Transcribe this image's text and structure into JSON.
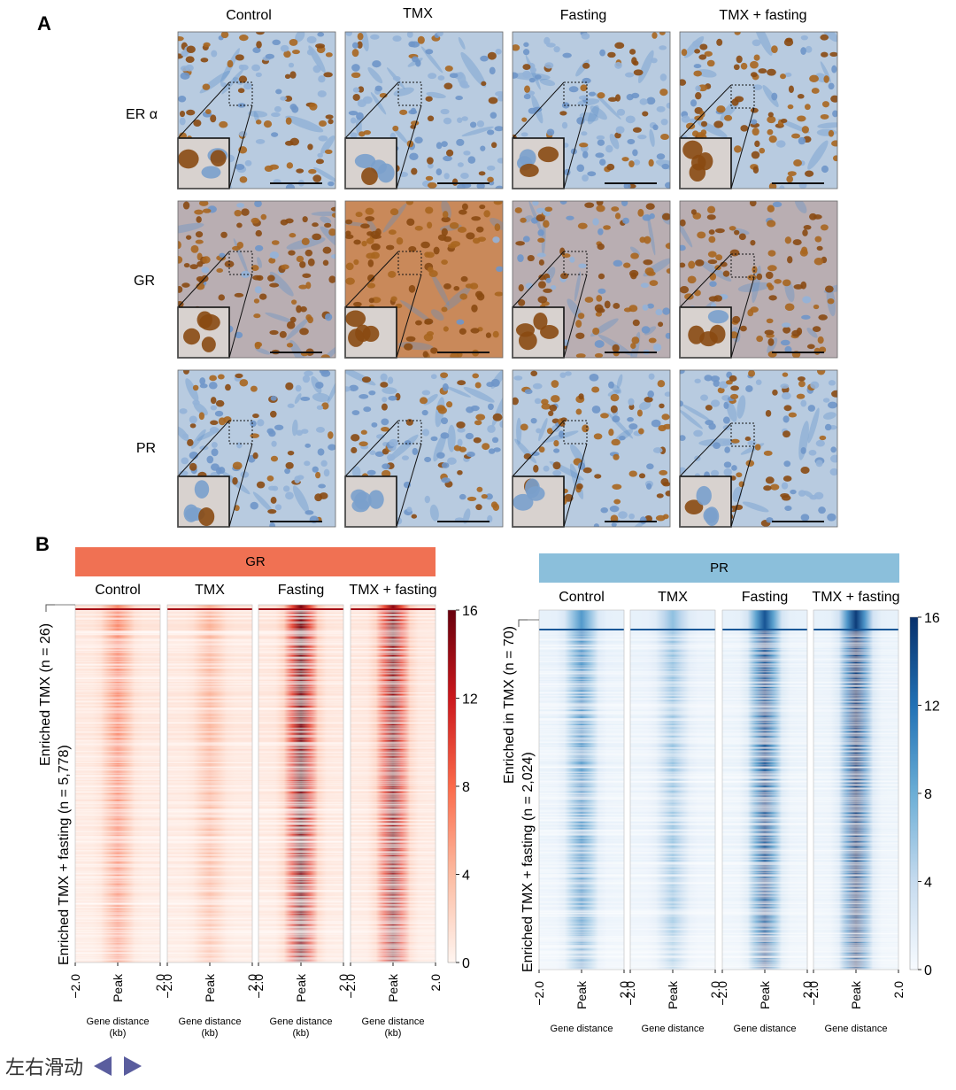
{
  "panel_a": {
    "label": "A",
    "columns": [
      "Control",
      "TMX",
      "Fasting",
      "TMX + fasting"
    ],
    "rows": [
      "ER α",
      "GR",
      "PR"
    ]
  },
  "panel_b": {
    "label": "B"
  },
  "nav": {
    "text": "左右滑动",
    "prev_icon": "triangle-left-icon",
    "next_icon": "triangle-right-icon",
    "color": "#5a5d9e"
  },
  "chart_data": [
    {
      "type": "heatmap",
      "title": "GR",
      "title_color": "#f07153",
      "columns": [
        "Control",
        "TMX",
        "Fasting",
        "TMX + fasting"
      ],
      "row_groups": [
        {
          "label": "Enriched TMX",
          "count_label": "n = 26",
          "n": 26
        },
        {
          "label": "Enriched TMX + fasting",
          "count_label": "n = 5,778",
          "n": 5778
        }
      ],
      "xticks": [
        "−2.0",
        "Peak",
        "2.0"
      ],
      "xlabel": "Gene distance (kb)",
      "colorbar": {
        "min": 0,
        "max": 16,
        "ticks": [
          0,
          4,
          8,
          12,
          16
        ],
        "colors": [
          "#fff5f0",
          "#fcbba1",
          "#fb6a4a",
          "#cb181d",
          "#67000d"
        ]
      },
      "relative_intensity": [
        0.35,
        0.22,
        0.95,
        0.9
      ]
    },
    {
      "type": "heatmap",
      "title": "PR",
      "title_color": "#8bbfdb",
      "columns": [
        "Control",
        "TMX",
        "Fasting",
        "TMX + fasting"
      ],
      "row_groups": [
        {
          "label": "Enriched in TMX",
          "count_label": "n = 70",
          "n": 70
        },
        {
          "label": "Enriched TMX + fasting",
          "count_label": "n = 2,024",
          "n": 2024
        }
      ],
      "xticks": [
        "−2.0",
        "Peak",
        "2.0"
      ],
      "xlabel": "Gene distance",
      "colorbar": {
        "min": 0,
        "max": 16,
        "ticks": [
          0,
          4,
          8,
          12,
          16
        ],
        "colors": [
          "#f7fbff",
          "#c6dbef",
          "#6baed6",
          "#2171b5",
          "#08306b"
        ]
      },
      "relative_intensity": [
        0.55,
        0.35,
        0.85,
        0.95
      ]
    }
  ]
}
